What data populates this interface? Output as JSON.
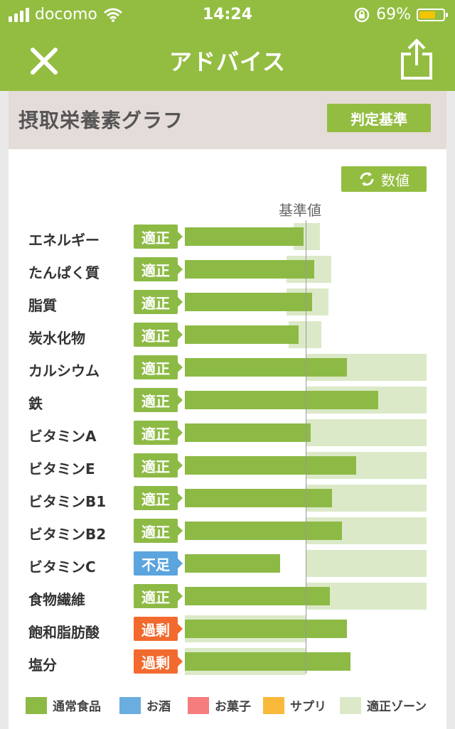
{
  "status_bar": {
    "carrier": "docomo",
    "time": "14:24",
    "battery": "69%"
  },
  "nav": {
    "title": "アドバイス",
    "close_icon": "close-icon",
    "share_icon": "share-icon"
  },
  "card": {
    "title": "摂取栄養素グラフ",
    "criteria_button": "判定基準",
    "values_button": "数値",
    "reference_label": "基準値"
  },
  "colors": {
    "brand": "#93bd41",
    "bar": "#8dba45",
    "zone": "#dbe9c8",
    "ok": "#8dba45",
    "low": "#5ba4de",
    "high": "#f26a2e"
  },
  "chart_data": {
    "type": "bar",
    "orientation": "horizontal",
    "reference_value": 100,
    "series": [
      {
        "name": "通常食品",
        "color": "#8dba45"
      }
    ],
    "rows": [
      {
        "label": "エネルギー",
        "status": "適正",
        "level": "ok",
        "value": 98,
        "zone": [
          90,
          112
        ]
      },
      {
        "label": "たんぱく質",
        "status": "適正",
        "level": "ok",
        "value": 107,
        "zone": [
          84,
          121
        ]
      },
      {
        "label": "脂質",
        "status": "適正",
        "level": "ok",
        "value": 105,
        "zone": [
          84,
          119
        ]
      },
      {
        "label": "炭水化物",
        "status": "適正",
        "level": "ok",
        "value": 94,
        "zone": [
          86,
          113
        ]
      },
      {
        "label": "カルシウム",
        "status": "適正",
        "level": "ok",
        "value": 134,
        "zone": [
          100,
          200
        ]
      },
      {
        "label": "鉄",
        "status": "適正",
        "level": "ok",
        "value": 160,
        "zone": [
          100,
          200
        ]
      },
      {
        "label": "ビタミンA",
        "status": "適正",
        "level": "ok",
        "value": 104,
        "zone": [
          100,
          200
        ]
      },
      {
        "label": "ビタミンE",
        "status": "適正",
        "level": "ok",
        "value": 142,
        "zone": [
          100,
          200
        ]
      },
      {
        "label": "ビタミンB1",
        "status": "適正",
        "level": "ok",
        "value": 122,
        "zone": [
          100,
          200
        ]
      },
      {
        "label": "ビタミンB2",
        "status": "適正",
        "level": "ok",
        "value": 130,
        "zone": [
          100,
          200
        ]
      },
      {
        "label": "ビタミンC",
        "status": "不足",
        "level": "low",
        "value": 79,
        "zone": [
          100,
          200
        ]
      },
      {
        "label": "食物繊維",
        "status": "適正",
        "level": "ok",
        "value": 120,
        "zone": [
          100,
          200
        ]
      },
      {
        "label": "飽和脂肪酸",
        "status": "過剰",
        "level": "high",
        "value": 134,
        "zone": [
          0,
          100
        ]
      },
      {
        "label": "塩分",
        "status": "過剰",
        "level": "high",
        "value": 137,
        "zone": [
          0,
          100
        ]
      }
    ],
    "legend": [
      {
        "label": "通常食品",
        "color": "#8dba45"
      },
      {
        "label": "お酒",
        "color": "#6aaee0"
      },
      {
        "label": "お菓子",
        "color": "#f57d7d"
      },
      {
        "label": "サプリ",
        "color": "#f9b93a"
      },
      {
        "label": "適正ゾーン",
        "color": "#dbe9c8"
      }
    ]
  }
}
